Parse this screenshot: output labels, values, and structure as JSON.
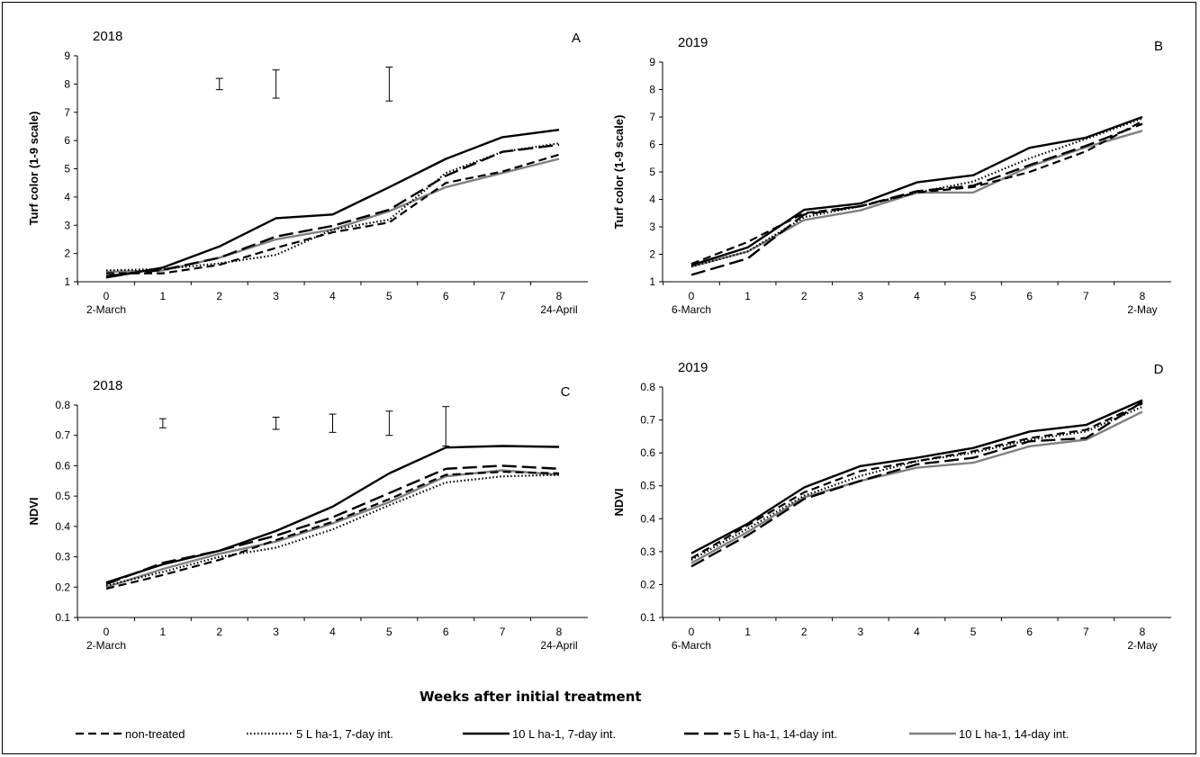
{
  "x_axis_title": "Weeks after initial treatment",
  "legend": [
    {
      "label": "non-treated",
      "color": "#000000",
      "dash": "9,5",
      "width": 2.2
    },
    {
      "label": "5 L ha-1, 7-day int.",
      "color": "#000000",
      "dash": "1.5,2.5",
      "width": 2.2
    },
    {
      "label": "10 L ha-1, 7-day int.",
      "color": "#000000",
      "dash": "",
      "width": 2.4
    },
    {
      "label": "5 L ha-1, 14-day int.",
      "color": "#000000",
      "dash": "16,6",
      "width": 2.4
    },
    {
      "label": "10 L ha-1, 14-day int.",
      "color": "#808080",
      "dash": "",
      "width": 2.4
    }
  ],
  "chart_data": [
    {
      "type": "line",
      "panel": "A",
      "title": "2018",
      "ylabel": "Turf color (1-9 scale)",
      "ylim": [
        1,
        9
      ],
      "yticks": [
        "1",
        "2",
        "3",
        "4",
        "5",
        "6",
        "7",
        "8",
        "9"
      ],
      "x": [
        0,
        1,
        2,
        3,
        4,
        5,
        6,
        7,
        8
      ],
      "xticks": [
        "0",
        "1",
        "2",
        "3",
        "4",
        "5",
        "6",
        "7",
        "8"
      ],
      "date_start": "2-March",
      "date_end": "24-April",
      "series": [
        {
          "name": "non-treated",
          "values": [
            1.3,
            1.3,
            1.6,
            2.2,
            2.75,
            3.1,
            4.5,
            4.9,
            5.5
          ]
        },
        {
          "name": "5 L ha-1, 7-day int.",
          "values": [
            1.4,
            1.45,
            1.65,
            1.95,
            2.85,
            3.2,
            4.85,
            5.6,
            5.9
          ]
        },
        {
          "name": "10 L ha-1, 7-day int.",
          "values": [
            1.15,
            1.5,
            2.25,
            3.25,
            3.38,
            4.35,
            5.35,
            6.12,
            6.38
          ]
        },
        {
          "name": "5 L ha-1, 14-day int.",
          "values": [
            1.2,
            1.42,
            1.85,
            2.6,
            2.98,
            3.55,
            4.75,
            5.6,
            5.85
          ]
        },
        {
          "name": "10 L ha-1, 14-day int.",
          "values": [
            1.35,
            1.4,
            1.85,
            2.5,
            2.85,
            3.5,
            4.35,
            4.85,
            5.35
          ]
        }
      ],
      "error_bars": [
        {
          "x": 2,
          "low": 7.8,
          "high": 8.2
        },
        {
          "x": 3,
          "low": 7.5,
          "high": 8.5
        },
        {
          "x": 5,
          "low": 7.4,
          "high": 8.6
        }
      ]
    },
    {
      "type": "line",
      "panel": "B",
      "title": "2019",
      "ylabel": "Turf color (1-9 scale)",
      "ylim": [
        1,
        9
      ],
      "yticks": [
        "1",
        "2",
        "3",
        "4",
        "5",
        "6",
        "7",
        "8",
        "9"
      ],
      "x": [
        0,
        1,
        2,
        3,
        4,
        5,
        6,
        7,
        8
      ],
      "xticks": [
        "0",
        "1",
        "2",
        "3",
        "4",
        "5",
        "6",
        "7",
        "8"
      ],
      "date_start": "6-March",
      "date_end": "2-May",
      "series": [
        {
          "name": "non-treated",
          "values": [
            1.65,
            2.45,
            3.5,
            3.75,
            4.25,
            4.45,
            5.0,
            5.75,
            6.85
          ]
        },
        {
          "name": "5 L ha-1, 7-day int.",
          "values": [
            1.55,
            2.1,
            3.35,
            3.75,
            4.25,
            4.65,
            5.5,
            6.2,
            6.95
          ]
        },
        {
          "name": "10 L ha-1, 7-day int.",
          "values": [
            1.6,
            2.25,
            3.62,
            3.85,
            4.62,
            4.88,
            5.88,
            6.25,
            7.0
          ]
        },
        {
          "name": "5 L ha-1, 14-day int.",
          "values": [
            1.25,
            1.85,
            3.45,
            3.75,
            4.3,
            4.5,
            5.25,
            5.95,
            6.75
          ]
        },
        {
          "name": "10 L ha-1, 14-day int.",
          "values": [
            1.55,
            2.1,
            3.25,
            3.6,
            4.25,
            4.25,
            5.2,
            5.9,
            6.5
          ]
        }
      ],
      "error_bars": []
    },
    {
      "type": "line",
      "panel": "C",
      "title": "2018",
      "ylabel": "NDVI",
      "ylim": [
        0.1,
        0.8
      ],
      "yticks": [
        "0.1",
        "0.2",
        "0.3",
        "0.4",
        "0.5",
        "0.6",
        "0.7",
        "0.8"
      ],
      "x": [
        0,
        1,
        2,
        3,
        4,
        5,
        6,
        7,
        8
      ],
      "xticks": [
        "0",
        "1",
        "2",
        "3",
        "4",
        "5",
        "6",
        "7",
        "8"
      ],
      "date_start": "2-March",
      "date_end": "24-April",
      "series": [
        {
          "name": "non-treated",
          "values": [
            0.195,
            0.24,
            0.29,
            0.355,
            0.415,
            0.49,
            0.57,
            0.58,
            0.575
          ]
        },
        {
          "name": "5 L ha-1, 7-day int.",
          "values": [
            0.205,
            0.25,
            0.3,
            0.33,
            0.39,
            0.47,
            0.545,
            0.565,
            0.57
          ]
        },
        {
          "name": "10 L ha-1, 7-day int.",
          "values": [
            0.215,
            0.275,
            0.32,
            0.385,
            0.465,
            0.575,
            0.66,
            0.665,
            0.662
          ]
        },
        {
          "name": "5 L ha-1, 14-day int.",
          "values": [
            0.21,
            0.28,
            0.32,
            0.37,
            0.43,
            0.51,
            0.59,
            0.6,
            0.59
          ]
        },
        {
          "name": "10 L ha-1, 14-day int.",
          "values": [
            0.2,
            0.26,
            0.31,
            0.35,
            0.41,
            0.48,
            0.565,
            0.585,
            0.57
          ]
        }
      ],
      "error_bars": [
        {
          "x": 1,
          "low": 0.725,
          "high": 0.755
        },
        {
          "x": 3,
          "low": 0.72,
          "high": 0.76
        },
        {
          "x": 4,
          "low": 0.71,
          "high": 0.77
        },
        {
          "x": 5,
          "low": 0.7,
          "high": 0.78
        },
        {
          "x": 6,
          "low": 0.665,
          "high": 0.795
        }
      ]
    },
    {
      "type": "line",
      "panel": "D",
      "title": "2019",
      "ylabel": "NDVI",
      "ylim": [
        0.1,
        0.8
      ],
      "yticks": [
        "0.1",
        "0.2",
        "0.3",
        "0.4",
        "0.5",
        "0.6",
        "0.7",
        "0.8"
      ],
      "x": [
        0,
        1,
        2,
        3,
        4,
        5,
        6,
        7,
        8
      ],
      "xticks": [
        "0",
        "1",
        "2",
        "3",
        "4",
        "5",
        "6",
        "7",
        "8"
      ],
      "date_start": "6-March",
      "date_end": "2-May",
      "series": [
        {
          "name": "non-treated",
          "values": [
            0.28,
            0.38,
            0.48,
            0.545,
            0.575,
            0.605,
            0.645,
            0.67,
            0.75
          ]
        },
        {
          "name": "5 L ha-1, 7-day int.",
          "values": [
            0.275,
            0.37,
            0.47,
            0.53,
            0.575,
            0.6,
            0.64,
            0.665,
            0.74
          ]
        },
        {
          "name": "10 L ha-1, 7-day int.",
          "values": [
            0.295,
            0.385,
            0.495,
            0.56,
            0.585,
            0.615,
            0.665,
            0.685,
            0.76
          ]
        },
        {
          "name": "5 L ha-1, 14-day int.",
          "values": [
            0.255,
            0.35,
            0.46,
            0.515,
            0.565,
            0.585,
            0.635,
            0.645,
            0.755
          ]
        },
        {
          "name": "10 L ha-1, 14-day int.",
          "values": [
            0.265,
            0.36,
            0.465,
            0.515,
            0.555,
            0.57,
            0.62,
            0.64,
            0.725
          ]
        }
      ],
      "error_bars": []
    }
  ]
}
